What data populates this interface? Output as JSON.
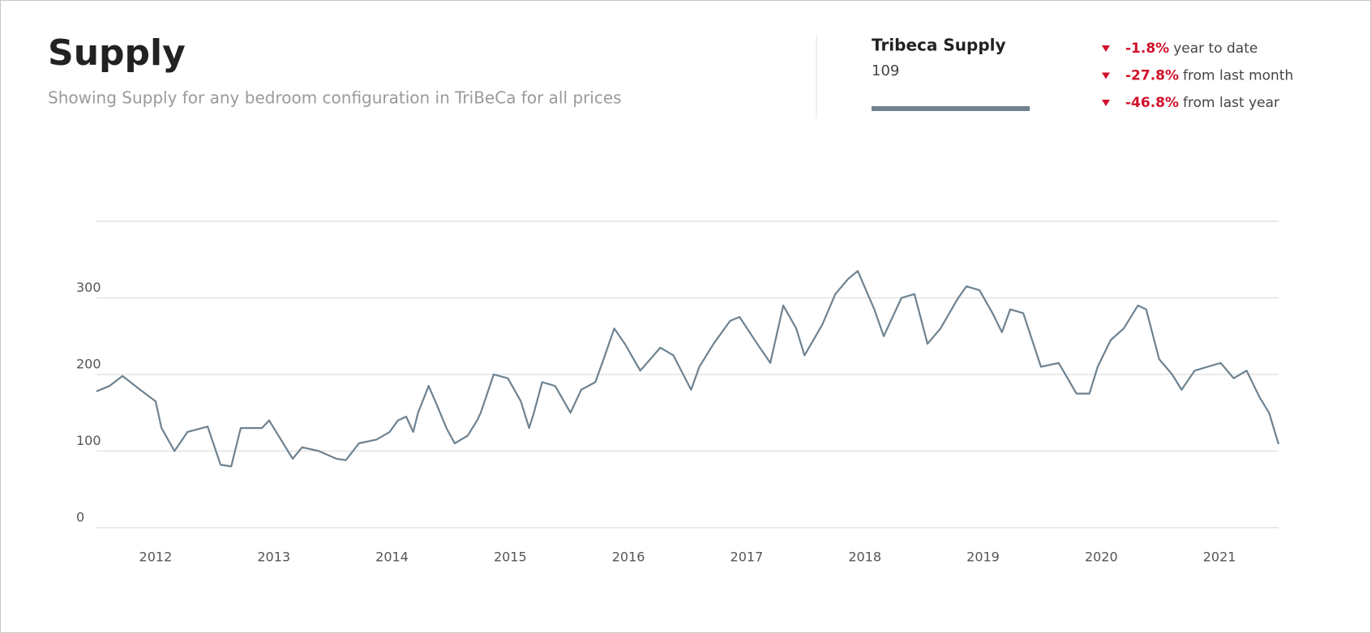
{
  "chart_data": {
    "type": "line",
    "title": "Supply",
    "subtitle": "Showing Supply for any bedroom configuration in TriBeCa for all prices",
    "xlim": [
      2011.5,
      2021.5
    ],
    "xticks": [
      2012,
      2013,
      2014,
      2015,
      2016,
      2017,
      2018,
      2019,
      2020,
      2021
    ],
    "ylim": [
      0,
      400
    ],
    "yticks": [
      0,
      100,
      200,
      300
    ],
    "grid": true,
    "series": [
      {
        "name": "Tribeca Supply",
        "color": "#6e8290",
        "x": [
          2011.5,
          2011.61,
          2011.72,
          2011.87,
          2012.0,
          2012.05,
          2012.16,
          2012.27,
          2012.44,
          2012.55,
          2012.64,
          2012.72,
          2012.9,
          2012.96,
          2013.16,
          2013.24,
          2013.38,
          2013.53,
          2013.61,
          2013.72,
          2013.87,
          2013.98,
          2014.05,
          2014.12,
          2014.18,
          2014.22,
          2014.31,
          2014.38,
          2014.46,
          2014.53,
          2014.64,
          2014.72,
          2014.75,
          2014.86,
          2014.98,
          2015.09,
          2015.16,
          2015.2,
          2015.27,
          2015.38,
          2015.51,
          2015.6,
          2015.72,
          2015.79,
          2015.88,
          2015.97,
          2016.1,
          2016.27,
          2016.38,
          2016.53,
          2016.6,
          2016.72,
          2016.86,
          2016.94,
          2017.09,
          2017.2,
          2017.31,
          2017.42,
          2017.49,
          2017.64,
          2017.75,
          2017.86,
          2017.94,
          2018.01,
          2018.08,
          2018.16,
          2018.31,
          2018.42,
          2018.53,
          2018.64,
          2018.79,
          2018.86,
          2018.97,
          2019.08,
          2019.16,
          2019.23,
          2019.34,
          2019.49,
          2019.64,
          2019.79,
          2019.9,
          2019.97,
          2020.08,
          2020.19,
          2020.31,
          2020.38,
          2020.49,
          2020.6,
          2020.68,
          2020.79,
          2020.9,
          2021.01,
          2021.12,
          2021.23,
          2021.34,
          2021.42,
          2021.5
        ],
        "values": [
          178,
          185,
          198,
          180,
          165,
          130,
          100,
          125,
          132,
          82,
          80,
          130,
          130,
          140,
          90,
          105,
          100,
          90,
          88,
          110,
          115,
          125,
          140,
          145,
          125,
          150,
          185,
          160,
          130,
          110,
          120,
          140,
          150,
          200,
          195,
          165,
          130,
          150,
          190,
          185,
          150,
          180,
          190,
          220,
          260,
          240,
          205,
          235,
          225,
          180,
          210,
          240,
          270,
          275,
          240,
          215,
          290,
          260,
          225,
          265,
          305,
          325,
          335,
          310,
          285,
          250,
          300,
          305,
          240,
          260,
          300,
          315,
          310,
          280,
          255,
          285,
          280,
          210,
          215,
          175,
          175,
          210,
          245,
          260,
          290,
          285,
          220,
          200,
          180,
          205,
          210,
          215,
          195,
          205,
          170,
          150,
          109
        ]
      }
    ]
  },
  "summary": {
    "current": "109",
    "changes": [
      {
        "change": "-1.8%",
        "label": "year to date"
      },
      {
        "change": "-27.8%",
        "label": "from last month"
      },
      {
        "change": "-46.8%",
        "label": "from last year"
      }
    ]
  }
}
